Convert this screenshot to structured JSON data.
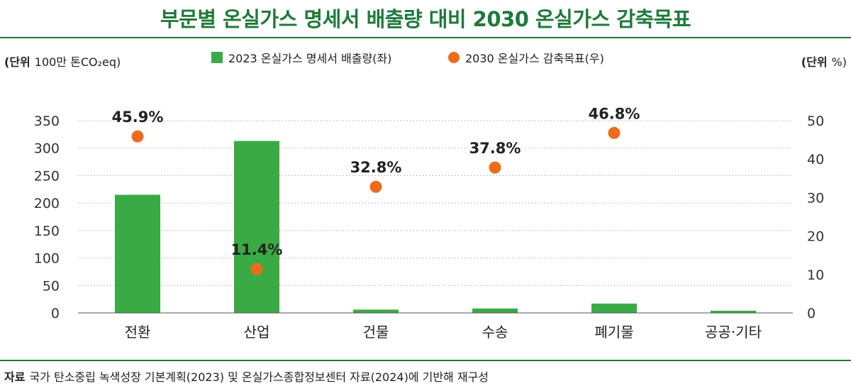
{
  "header": {
    "title": "부문별 온실가스 명세서 배출량 대비 2030 온실가스 감축목표"
  },
  "footer": {
    "label": "자료",
    "text": "국가 탄소중립 녹색성장 기본계획(2023) 및 온실가스종합정보센터 자료(2024)에 기반해 재구성"
  },
  "colors": {
    "accent": "#1f7a3a",
    "bar": "#3aaa45",
    "dot": "#ec6c1c"
  },
  "chart_data": {
    "type": "bar",
    "categories": [
      "전환",
      "산업",
      "건물",
      "수송",
      "폐기물",
      "공공·기타"
    ],
    "series": [
      {
        "name": "2023 온실가스 명세서 배출량(좌)",
        "type": "bar",
        "axis": "left",
        "values": [
          215,
          313,
          6,
          8,
          17,
          4
        ]
      },
      {
        "name": "2030 온실가스 감축목표(우)",
        "type": "scatter",
        "axis": "right",
        "values": [
          45.9,
          11.4,
          32.8,
          37.8,
          46.8,
          null
        ],
        "labels": [
          "45.9%",
          "11.4%",
          "32.8%",
          "37.8%",
          "46.8%",
          null
        ]
      }
    ],
    "left_axis": {
      "unit_prefix": "(단위",
      "unit_value": "100만 톤CO₂eq)",
      "ylim": [
        0,
        350
      ],
      "ticks": [
        0,
        50,
        100,
        150,
        200,
        250,
        300,
        350
      ]
    },
    "right_axis": {
      "unit_prefix": "(단위",
      "unit_value": "%)",
      "ylim": [
        0,
        50
      ],
      "ticks": [
        0,
        10,
        20,
        30,
        40,
        50
      ]
    },
    "grid": "horizontal-dotted",
    "legend": "top-center"
  }
}
